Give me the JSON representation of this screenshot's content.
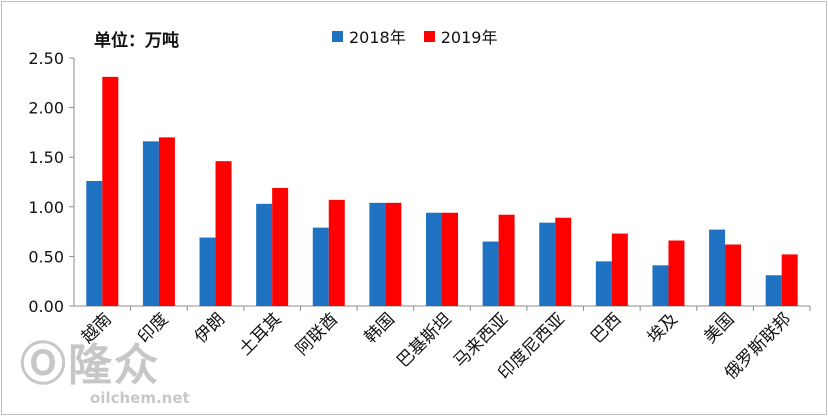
{
  "watermark": {
    "brand": "隆众",
    "url": "oilchem.net"
  },
  "chart_data": {
    "type": "bar",
    "unit_label": "单位：万吨",
    "categories": [
      "越南",
      "印度",
      "伊朗",
      "土耳其",
      "阿联酋",
      "韩国",
      "巴基斯坦",
      "马来西亚",
      "印度尼西亚",
      "巴西",
      "埃及",
      "美国",
      "俄罗斯联邦"
    ],
    "series": [
      {
        "name": "2018年",
        "color": "#1f72c2",
        "values": [
          1.26,
          1.66,
          0.69,
          1.03,
          0.79,
          1.04,
          0.94,
          0.65,
          0.84,
          0.45,
          0.41,
          0.77,
          0.31
        ]
      },
      {
        "name": "2019年",
        "color": "#ff0000",
        "values": [
          2.31,
          1.7,
          1.46,
          1.19,
          1.07,
          1.04,
          0.94,
          0.92,
          0.89,
          0.73,
          0.66,
          0.62,
          0.52
        ]
      }
    ],
    "ylim": [
      0,
      2.5
    ],
    "yticks": [
      "0.00",
      "0.50",
      "1.00",
      "1.50",
      "2.00",
      "2.50"
    ],
    "legend_position": "top-center",
    "grid": false
  }
}
